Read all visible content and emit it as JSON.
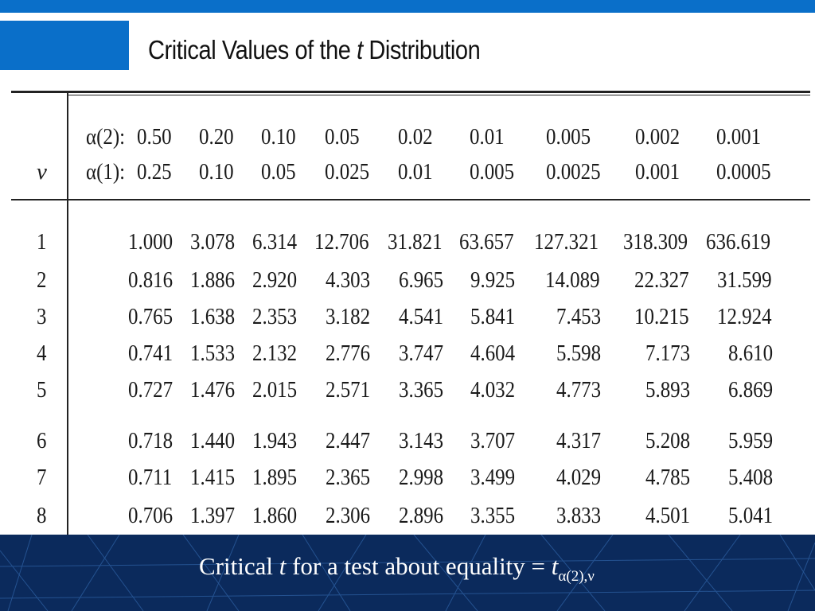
{
  "title": {
    "prefix": "Critical Values of the ",
    "italic": "t",
    "suffix": " Distribution"
  },
  "header": {
    "nu_label": "ν",
    "alpha2_label": "α(2):",
    "alpha1_label": "α(1):",
    "alpha2": [
      "0.50",
      "0.20",
      "0.10",
      "0.05",
      "0.02",
      "0.01",
      "0.005",
      "0.002",
      "0.001"
    ],
    "alpha1": [
      "0.25",
      "0.10",
      "0.05",
      "0.025",
      "0.01",
      "0.005",
      "0.0025",
      "0.001",
      "0.0005"
    ]
  },
  "rows": [
    {
      "df": "1",
      "values": [
        "1.000",
        "3.078",
        "6.314",
        "12.706",
        "31.821",
        "63.657",
        "127.321",
        "318.309",
        "636.619"
      ]
    },
    {
      "df": "2",
      "values": [
        "0.816",
        "1.886",
        "2.920",
        "4.303",
        "6.965",
        "9.925",
        "14.089",
        "22.327",
        "31.599"
      ]
    },
    {
      "df": "3",
      "values": [
        "0.765",
        "1.638",
        "2.353",
        "3.182",
        "4.541",
        "5.841",
        "7.453",
        "10.215",
        "12.924"
      ]
    },
    {
      "df": "4",
      "values": [
        "0.741",
        "1.533",
        "2.132",
        "2.776",
        "3.747",
        "4.604",
        "5.598",
        "7.173",
        "8.610"
      ]
    },
    {
      "df": "5",
      "values": [
        "0.727",
        "1.476",
        "2.015",
        "2.571",
        "3.365",
        "4.032",
        "4.773",
        "5.893",
        "6.869"
      ]
    },
    {
      "df": "6",
      "values": [
        "0.718",
        "1.440",
        "1.943",
        "2.447",
        "3.143",
        "3.707",
        "4.317",
        "5.208",
        "5.959"
      ]
    },
    {
      "df": "7",
      "values": [
        "0.711",
        "1.415",
        "1.895",
        "2.365",
        "2.998",
        "3.499",
        "4.029",
        "4.785",
        "5.408"
      ]
    },
    {
      "df": "8",
      "values": [
        "0.706",
        "1.397",
        "1.860",
        "2.306",
        "2.896",
        "3.355",
        "3.833",
        "4.501",
        "5.041"
      ]
    }
  ],
  "caption": {
    "prefix": "Critical ",
    "italic": "t",
    "middle": " for a test about equality = ",
    "t": "t",
    "subscript": "α(2),ν"
  },
  "colors": {
    "accent_blue": "#0a6fc9",
    "footer_navy": "#0b2a5c"
  }
}
